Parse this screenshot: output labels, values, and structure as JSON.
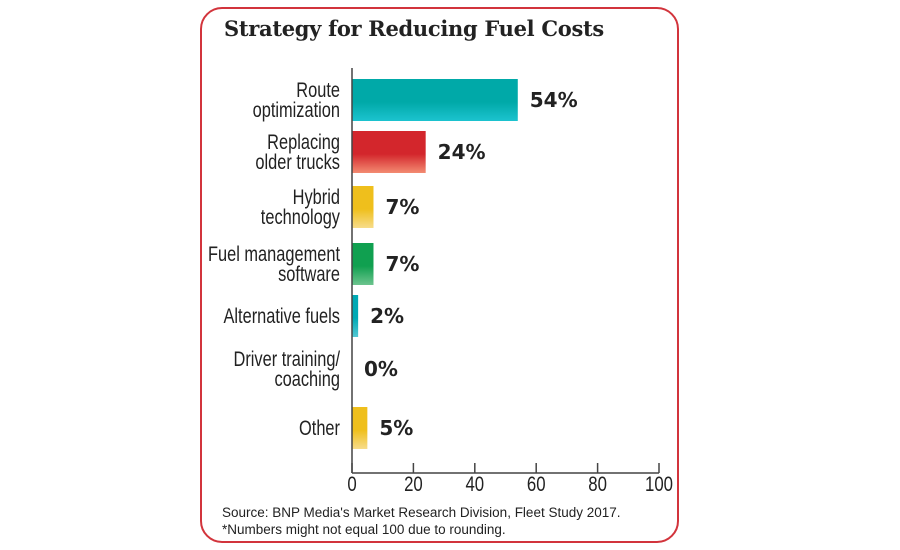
{
  "chart_data": {
    "type": "bar",
    "orientation": "horizontal",
    "title": "Strategy for Reducing Fuel Costs",
    "categories": [
      [
        "Route",
        "optimization"
      ],
      [
        "Replacing",
        "older trucks"
      ],
      [
        "Hybrid",
        "technology"
      ],
      [
        "Fuel management",
        "software"
      ],
      [
        "Alternative fuels"
      ],
      [
        "Driver training/",
        "coaching"
      ],
      [
        "Other"
      ]
    ],
    "values": [
      54,
      24,
      7,
      7,
      2,
      0,
      5
    ],
    "value_labels": [
      "54%",
      "24%",
      "7%",
      "7%",
      "2%",
      "0%",
      "5%"
    ],
    "colors": [
      [
        "#00a9a8",
        "#1cc3cf"
      ],
      [
        "#d3262c",
        "#f38b72"
      ],
      [
        "#efbf1c",
        "#f7dc8a"
      ],
      [
        "#10a050",
        "#6cc48e"
      ],
      [
        "#00a9b4",
        "#52c8d3"
      ],
      [
        "#ffffff",
        "#ffffff"
      ],
      [
        "#efbf1c",
        "#f7dc8a"
      ]
    ],
    "xlim": [
      0,
      100
    ],
    "xticks": [
      "0",
      "20",
      "40",
      "60",
      "80",
      "100"
    ],
    "xlabel": "",
    "ylabel": "",
    "grid": false,
    "border_color": "#d2343c"
  },
  "footer": {
    "source": "Source: BNP Media's Market Research Division, Fleet Study 2017.",
    "note": "*Numbers might not equal 100 due to rounding."
  }
}
